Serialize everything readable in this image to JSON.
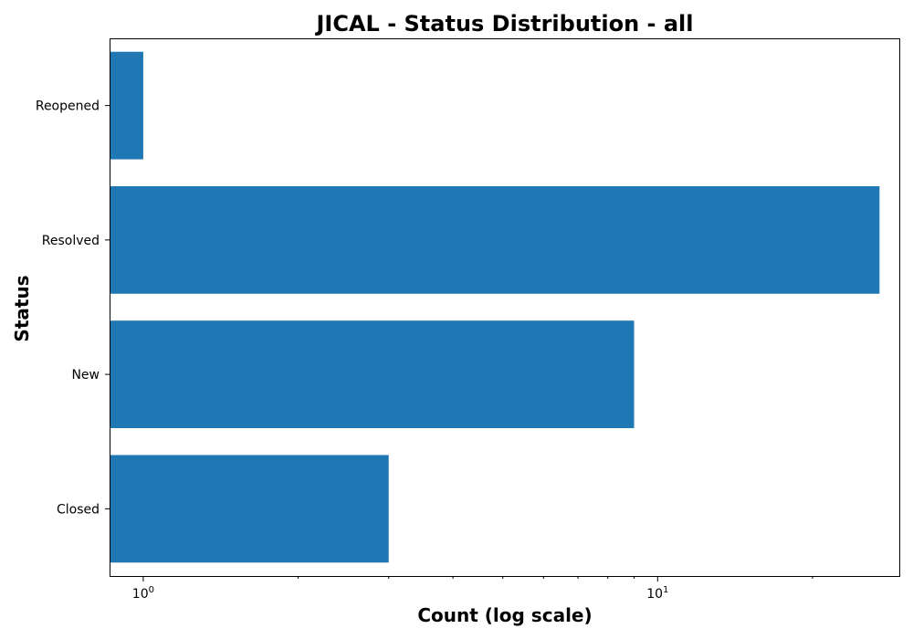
{
  "chart_data": {
    "type": "bar",
    "orientation": "horizontal",
    "title": "JICAL - Status Distribution - all",
    "xlabel": "Count (log scale)",
    "ylabel": "Status",
    "x_scale": "log",
    "xlim": [
      0.86,
      29.5
    ],
    "x_major_ticks": [
      {
        "value": 1,
        "base": "10",
        "exponent": "0"
      },
      {
        "value": 10,
        "base": "10",
        "exponent": "1"
      }
    ],
    "x_minor_ticks": [
      2,
      3,
      4,
      5,
      6,
      7,
      8,
      9,
      20
    ],
    "categories": [
      "Reopened",
      "Resolved",
      "New",
      "Closed"
    ],
    "values": [
      1,
      27,
      9,
      3
    ],
    "bar_color": "#1f77b4",
    "grid": false,
    "legend": "none"
  }
}
